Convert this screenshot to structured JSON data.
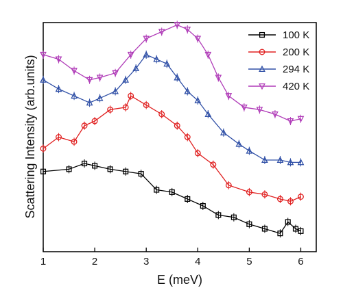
{
  "chart_data": {
    "type": "line",
    "xlabel": "E (meV)",
    "ylabel": "Scattering Intensity (arb.units)",
    "xlim": [
      1,
      6.3
    ],
    "ylim": [
      0,
      1
    ],
    "xticks": [
      "1",
      "2",
      "3",
      "4",
      "5",
      "6"
    ],
    "y_tick_labels": false,
    "legend_position": "top-right",
    "series": [
      {
        "name": "100 K",
        "color": "#000000",
        "marker": "square",
        "x": [
          1.0,
          1.5,
          1.8,
          2.0,
          2.3,
          2.6,
          2.9,
          3.2,
          3.5,
          3.8,
          4.1,
          4.4,
          4.7,
          5.0,
          5.3,
          5.6,
          5.75,
          5.9,
          6.0
        ],
        "y": [
          0.35,
          0.36,
          0.385,
          0.375,
          0.36,
          0.35,
          0.34,
          0.27,
          0.26,
          0.23,
          0.2,
          0.16,
          0.15,
          0.12,
          0.1,
          0.08,
          0.13,
          0.1,
          0.09
        ]
      },
      {
        "name": "200 K",
        "color": "#e02020",
        "marker": "circle",
        "x": [
          1.0,
          1.3,
          1.6,
          1.8,
          2.0,
          2.3,
          2.6,
          2.7,
          3.0,
          3.3,
          3.6,
          3.8,
          4.0,
          4.3,
          4.6,
          5.0,
          5.3,
          5.6,
          5.8,
          6.0
        ],
        "y": [
          0.45,
          0.5,
          0.48,
          0.55,
          0.57,
          0.62,
          0.63,
          0.68,
          0.64,
          0.6,
          0.55,
          0.5,
          0.43,
          0.38,
          0.29,
          0.26,
          0.25,
          0.23,
          0.22,
          0.24
        ]
      },
      {
        "name": "294 K",
        "color": "#2f4fa6",
        "marker": "triangle-up",
        "x": [
          1.0,
          1.3,
          1.6,
          1.9,
          2.1,
          2.4,
          2.6,
          2.8,
          3.0,
          3.2,
          3.4,
          3.6,
          3.8,
          4.0,
          4.2,
          4.5,
          4.8,
          5.0,
          5.3,
          5.6,
          5.8,
          6.0
        ],
        "y": [
          0.75,
          0.71,
          0.68,
          0.65,
          0.67,
          0.7,
          0.75,
          0.8,
          0.86,
          0.84,
          0.82,
          0.76,
          0.7,
          0.66,
          0.6,
          0.52,
          0.47,
          0.44,
          0.4,
          0.4,
          0.39,
          0.39
        ]
      },
      {
        "name": "420 K",
        "color": "#b03cb8",
        "marker": "triangle-down",
        "x": [
          1.0,
          1.3,
          1.6,
          1.9,
          2.1,
          2.4,
          2.7,
          3.0,
          3.3,
          3.6,
          3.8,
          4.0,
          4.2,
          4.4,
          4.6,
          4.9,
          5.2,
          5.5,
          5.8,
          6.0
        ],
        "y": [
          0.86,
          0.84,
          0.79,
          0.75,
          0.76,
          0.78,
          0.86,
          0.93,
          0.96,
          0.99,
          0.97,
          0.93,
          0.86,
          0.76,
          0.68,
          0.63,
          0.62,
          0.6,
          0.57,
          0.58
        ]
      }
    ]
  }
}
